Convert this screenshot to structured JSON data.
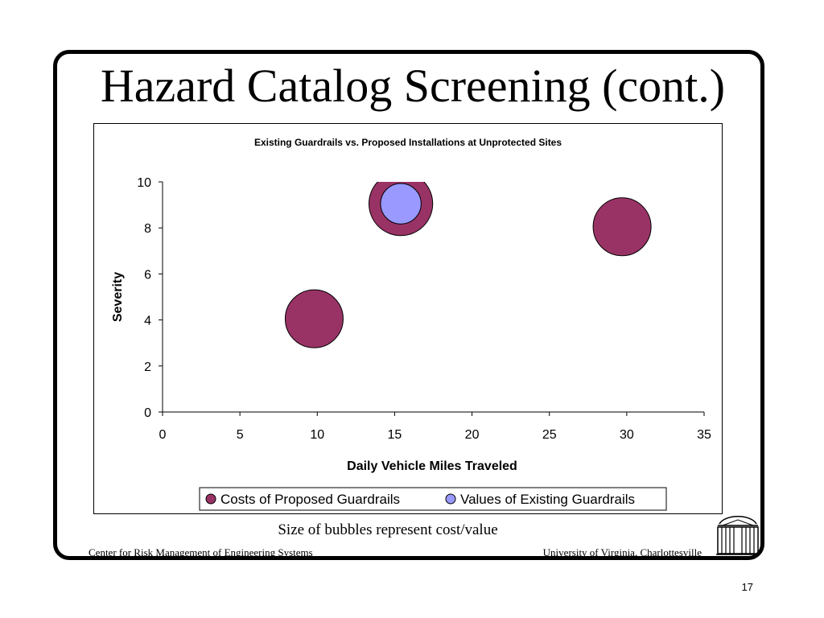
{
  "slide": {
    "title": "Hazard Catalog Screening (cont.)",
    "caption": "Size of bubbles represent cost/value",
    "footer_left": "Center for Risk Management of Engineering Systems",
    "footer_right": "University of Virginia, Charlottesville",
    "page_number": "17",
    "logo_icon": "rotunda-icon"
  },
  "chart_data": {
    "type": "scatter",
    "variant": "bubble",
    "title": "Existing Guardrails vs. Proposed Installations at Unprotected Sites",
    "xlabel": "Daily Vehicle Miles Traveled",
    "ylabel": "Severity",
    "xlim": [
      0,
      35
    ],
    "ylim": [
      0,
      10
    ],
    "xticks": [
      0,
      5,
      10,
      15,
      20,
      25,
      30,
      35
    ],
    "yticks": [
      0,
      2,
      4,
      6,
      8,
      10
    ],
    "grid": false,
    "legend_position": "bottom",
    "series": [
      {
        "name": "Costs of Proposed Guardrails",
        "color": "#993366",
        "points": [
          {
            "x": 9.8,
            "y": 4.05,
            "size": 1.0
          },
          {
            "x": 15.4,
            "y": 9.05,
            "size": 1.1
          },
          {
            "x": 29.7,
            "y": 8.05,
            "size": 1.0
          }
        ]
      },
      {
        "name": "Values of Existing Guardrails",
        "color": "#9999ff",
        "points": [
          {
            "x": 15.4,
            "y": 9.05,
            "size": 0.7
          }
        ]
      }
    ]
  }
}
